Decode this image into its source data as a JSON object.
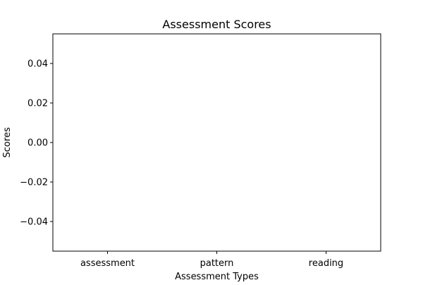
{
  "chart_data": {
    "type": "bar",
    "title": "Assessment Scores",
    "xlabel": "Assessment Types",
    "ylabel": "Scores",
    "categories": [
      "assessment",
      "pattern",
      "reading"
    ],
    "values": [
      0,
      0,
      0
    ],
    "ylim": [
      -0.055,
      0.055
    ],
    "yticks": [
      -0.04,
      -0.02,
      0.0,
      0.02,
      0.04
    ],
    "ytick_labels": [
      "−0.04",
      "−0.02",
      "0.00",
      "0.02",
      "0.04"
    ],
    "grid": false,
    "legend": "none",
    "colors": {
      "bar": "#1f77b4",
      "axes": "#000000",
      "background": "#ffffff"
    }
  }
}
